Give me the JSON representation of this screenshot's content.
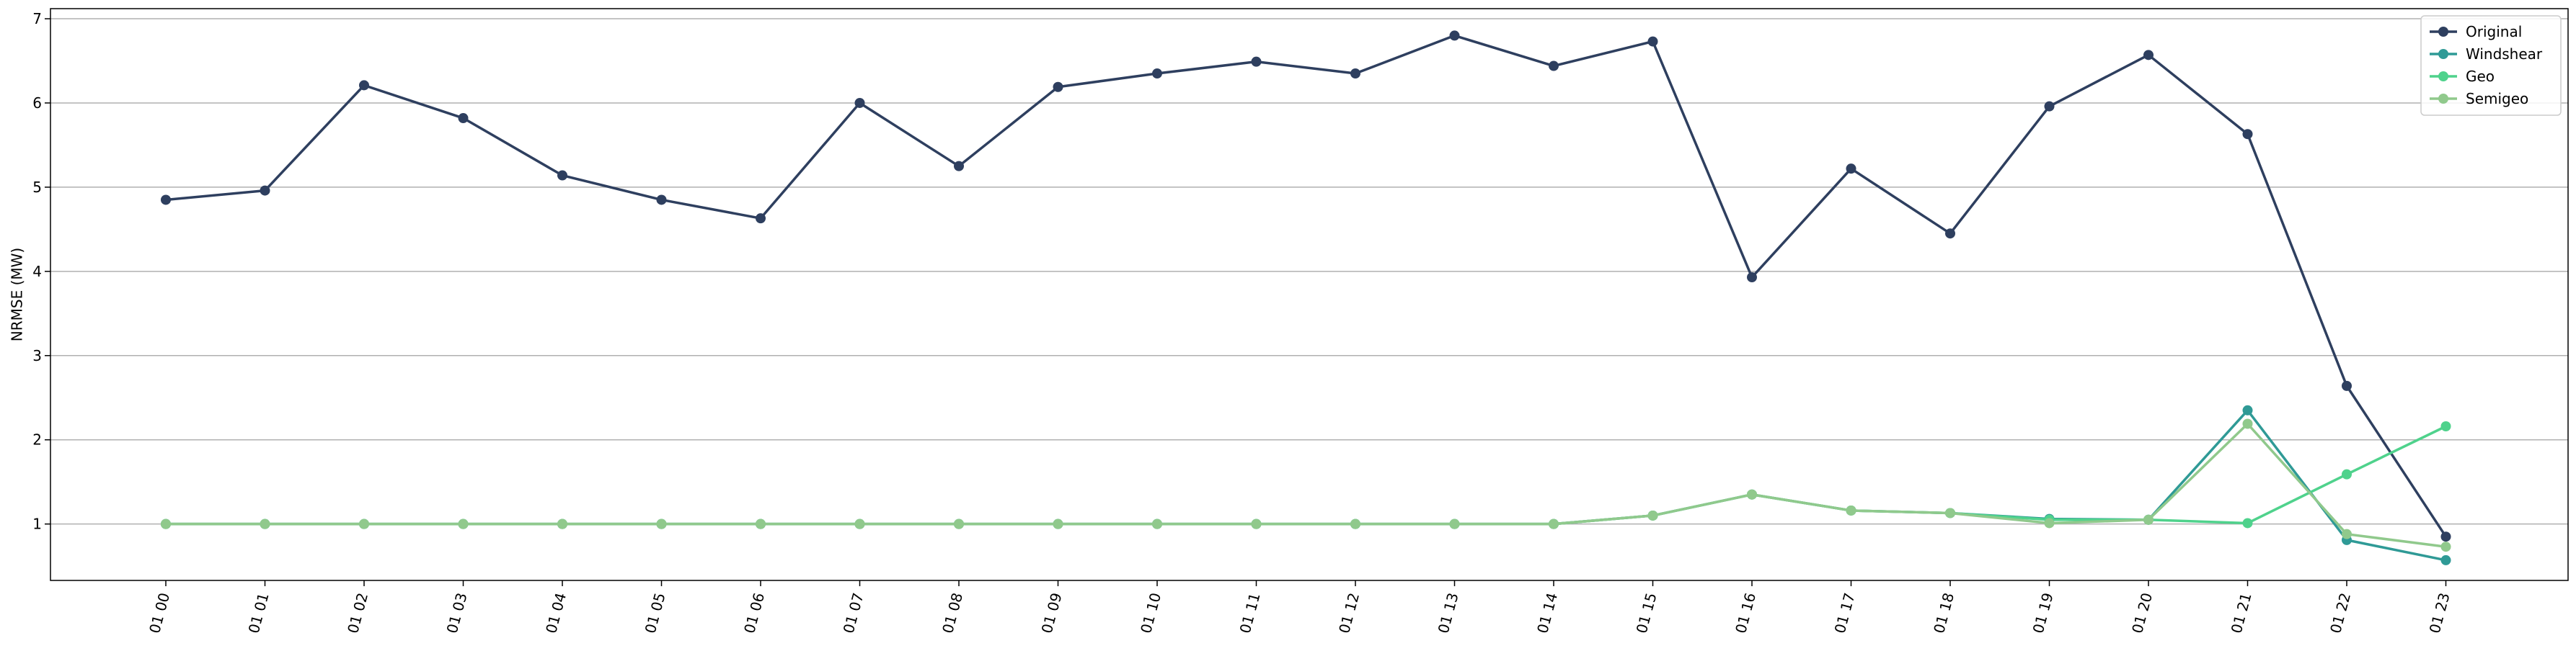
{
  "chart_data": {
    "type": "line",
    "ylabel": "NRMSE (MW)",
    "xlabel": "",
    "grid": "horizontal",
    "legend_position": "top-right",
    "x": [
      "01 00",
      "01 01",
      "01 02",
      "01 03",
      "01 04",
      "01 05",
      "01 06",
      "01 07",
      "01 08",
      "01 09",
      "01 10",
      "01 11",
      "01 12",
      "01 13",
      "01 14",
      "01 15",
      "01 16",
      "01 17",
      "01 18",
      "01 19",
      "01 20",
      "01 21",
      "01 22",
      "01 23"
    ],
    "yticks": [
      1,
      2,
      3,
      4,
      5,
      6,
      7
    ],
    "ylim": [
      0.33,
      7.12
    ],
    "series": [
      {
        "name": "Original",
        "color": "#2e3f5f",
        "values": [
          4.85,
          4.96,
          6.21,
          5.82,
          5.14,
          4.85,
          4.63,
          6.0,
          5.25,
          6.19,
          6.35,
          6.49,
          6.35,
          6.8,
          6.44,
          6.73,
          3.93,
          5.22,
          4.45,
          5.96,
          6.57,
          5.63,
          2.64,
          0.85
        ]
      },
      {
        "name": "Windshear",
        "color": "#2f9a96",
        "values": [
          1.0,
          1.0,
          1.0,
          1.0,
          1.0,
          1.0,
          1.0,
          1.0,
          1.0,
          1.0,
          1.0,
          1.0,
          1.0,
          1.0,
          1.0,
          1.1,
          1.35,
          1.16,
          1.13,
          1.06,
          1.05,
          2.35,
          0.81,
          0.57
        ]
      },
      {
        "name": "Geo",
        "color": "#4fd28c",
        "values": [
          1.0,
          1.0,
          1.0,
          1.0,
          1.0,
          1.0,
          1.0,
          1.0,
          1.0,
          1.0,
          1.0,
          1.0,
          1.0,
          1.0,
          1.0,
          1.1,
          1.35,
          1.16,
          1.13,
          1.05,
          1.05,
          1.01,
          1.59,
          2.16
        ]
      },
      {
        "name": "Semigeo",
        "color": "#90c98c",
        "values": [
          1.0,
          1.0,
          1.0,
          1.0,
          1.0,
          1.0,
          1.0,
          1.0,
          1.0,
          1.0,
          1.0,
          1.0,
          1.0,
          1.0,
          1.0,
          1.1,
          1.35,
          1.16,
          1.13,
          1.01,
          1.05,
          2.19,
          0.88,
          0.73
        ]
      }
    ]
  }
}
